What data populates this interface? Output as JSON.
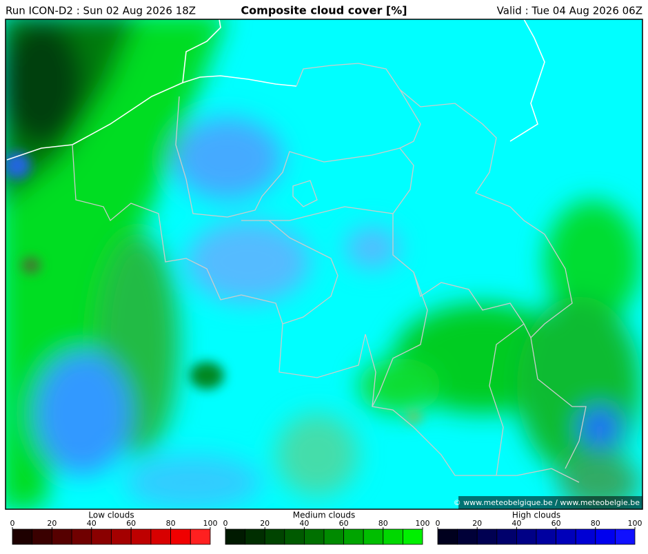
{
  "header": {
    "run": "Run ICON-D2 : Sun 02 Aug 2026 18Z",
    "title": "Composite cloud cover [%]",
    "valid": "Valid : Tue 04 Aug 2026 06Z"
  },
  "copyright": "© www.meteobelgique.be / www.meteobelgie.be",
  "legends": [
    {
      "label": "Low clouds",
      "lim": [
        0,
        100
      ],
      "ticks": [
        0,
        20,
        40,
        60,
        80,
        100
      ],
      "colors": [
        "#1e0000",
        "#3a0000",
        "#560000",
        "#700000",
        "#8a0000",
        "#a40000",
        "#be0000",
        "#d80000",
        "#f00000",
        "#ff2020"
      ]
    },
    {
      "label": "Medium clouds",
      "lim": [
        0,
        100
      ],
      "ticks": [
        0,
        20,
        40,
        60,
        80,
        100
      ],
      "colors": [
        "#001a00",
        "#002e00",
        "#004400",
        "#005a00",
        "#007000",
        "#008a00",
        "#00a400",
        "#00be00",
        "#00d800",
        "#00f000"
      ]
    },
    {
      "label": "High clouds",
      "lim": [
        0,
        100
      ],
      "ticks": [
        0,
        20,
        40,
        60,
        80,
        100
      ],
      "colors": [
        "#00001e",
        "#000038",
        "#000052",
        "#00006c",
        "#000086",
        "#0000a0",
        "#0000ba",
        "#0000d4",
        "#0000ee",
        "#1010ff"
      ]
    }
  ]
}
